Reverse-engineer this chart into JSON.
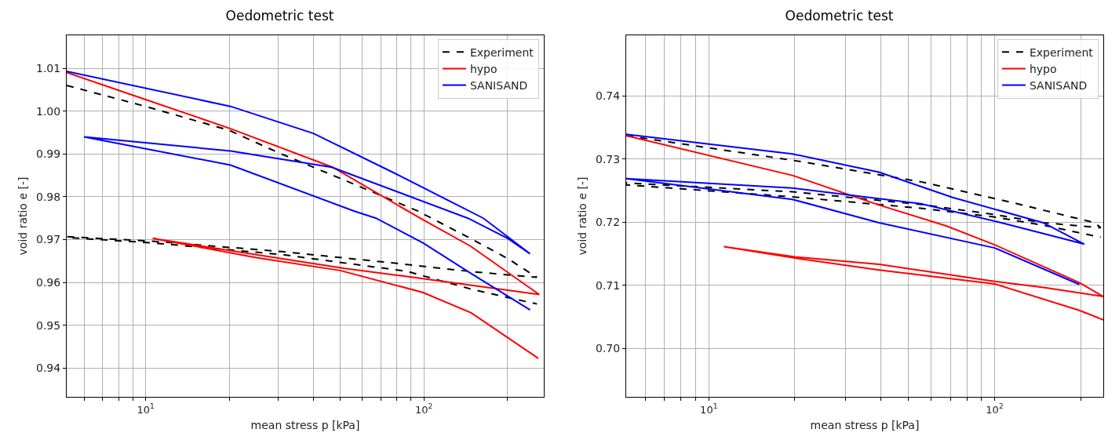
{
  "chart_data": [
    {
      "type": "line",
      "title": "Oedometric test",
      "xlabel": "mean stress p [kPa]",
      "ylabel": "void ratio e [-]",
      "log": "x",
      "grid": true,
      "legend": "top right",
      "xlim": [
        5.2,
        270
      ],
      "ylim": [
        0.9333,
        1.0177
      ],
      "xticks": [
        {
          "value": 6,
          "label": null
        },
        {
          "value": 7,
          "label": null
        },
        {
          "value": 8,
          "label": null
        },
        {
          "value": 9,
          "label": null
        },
        {
          "value": 10,
          "label": "10$^{1}$"
        },
        {
          "value": 20,
          "label": null
        },
        {
          "value": 30,
          "label": null
        },
        {
          "value": 40,
          "label": null
        },
        {
          "value": 50,
          "label": null
        },
        {
          "value": 60,
          "label": null
        },
        {
          "value": 70,
          "label": null
        },
        {
          "value": 80,
          "label": null
        },
        {
          "value": 90,
          "label": null
        },
        {
          "value": 100,
          "label": "10$^{2}$"
        },
        {
          "value": 200,
          "label": null
        }
      ],
      "yticks": [
        0.94,
        0.95,
        0.96,
        0.97,
        0.98,
        0.99,
        {
          "value": 1,
          "label": "1.00"
        },
        1.01
      ],
      "series": [
        {
          "name": "Experiment",
          "color": "#000000",
          "line_style": "dashed",
          "x": [
            5.2,
            10,
            20,
            30,
            50,
            95,
            150,
            200,
            255,
            150,
            79,
            31,
            10.8,
            5.2,
            5.2,
            10.8,
            31,
            87,
            147,
            200,
            255
          ],
          "values": [
            1.006,
            1.0011,
            0.9955,
            0.9903,
            0.9843,
            0.9767,
            0.97,
            0.9656,
            0.9612,
            0.9625,
            0.9645,
            0.9672,
            0.9696,
            0.9707,
            0.9705,
            0.9692,
            0.9665,
            0.9626,
            0.9585,
            0.9565,
            0.955
          ]
        },
        {
          "name": "hypo",
          "color": "#ff0000",
          "line_style": "solid",
          "x": [
            5.2,
            10,
            20.2,
            47,
            97,
            147,
            260,
            87,
            52,
            25,
            10.6,
            25,
            50,
            99,
            148,
            258
          ],
          "values": [
            1.009,
            1.0027,
            0.9959,
            0.9869,
            0.975,
            0.9685,
            0.9572,
            0.9614,
            0.9633,
            0.9665,
            0.9703,
            0.9658,
            0.9628,
            0.9577,
            0.9529,
            0.9423
          ]
        },
        {
          "name": "SANISAND",
          "color": "#0000ff",
          "line_style": "solid",
          "x": [
            5.2,
            20.2,
            40.1,
            76.9,
            163.7,
            241,
            200,
            144,
            46.7,
            20.2,
            6,
            20.2,
            56,
            67.3,
            99.5,
            147,
            241
          ],
          "values": [
            1.0093,
            1.0011,
            0.9948,
            0.9858,
            0.975,
            0.9667,
            0.9703,
            0.975,
            0.9869,
            0.9907,
            0.994,
            0.9874,
            0.9767,
            0.975,
            0.9692,
            0.9622,
            0.9536
          ]
        }
      ]
    },
    {
      "type": "line",
      "title": "Oedometric test",
      "xlabel": "mean stress p [kPa]",
      "ylabel": "void ratio e [-]",
      "log": "x",
      "grid": true,
      "legend": "top right",
      "xlim": [
        5.14,
        240
      ],
      "ylim": [
        0.6923,
        0.7496
      ],
      "xticks": [
        {
          "value": 6,
          "label": null
        },
        {
          "value": 7,
          "label": null
        },
        {
          "value": 8,
          "label": null
        },
        {
          "value": 9,
          "label": null
        },
        {
          "value": 10,
          "label": "10$^{1}$"
        },
        {
          "value": 20,
          "label": null
        },
        {
          "value": 30,
          "label": null
        },
        {
          "value": 40,
          "label": null
        },
        {
          "value": 50,
          "label": null
        },
        {
          "value": 60,
          "label": null
        },
        {
          "value": 70,
          "label": null
        },
        {
          "value": 80,
          "label": null
        },
        {
          "value": 90,
          "label": null
        },
        {
          "value": 100,
          "label": "10$^{2}$"
        },
        {
          "value": 200,
          "label": null
        }
      ],
      "yticks": [
        {
          "value": 0.7,
          "label": "0.70"
        },
        0.71,
        0.72,
        0.73,
        0.74
      ],
      "series": [
        {
          "name": "Experiment",
          "color": "#000000",
          "line_style": "dashed",
          "x": [
            5.14,
            19.6,
            55,
            120,
            224,
            235,
            148,
            100,
            55,
            19.6,
            5.14,
            5.14,
            19.6,
            55,
            100,
            148,
            235
          ],
          "values": [
            0.7337,
            0.7298,
            0.7264,
            0.7229,
            0.7199,
            0.7191,
            0.7199,
            0.7212,
            0.7228,
            0.7248,
            0.7262,
            0.7259,
            0.724,
            0.7222,
            0.7208,
            0.7195,
            0.7176
          ]
        },
        {
          "name": "hypo",
          "color": "#ff0000",
          "line_style": "solid",
          "x": [
            5.14,
            19.6,
            39.4,
            67.7,
            100,
            198,
            240,
            150,
            100,
            39.4,
            20,
            11.3,
            20,
            39.4,
            100,
            198,
            240
          ],
          "values": [
            0.7337,
            0.7274,
            0.7227,
            0.7194,
            0.7164,
            0.7104,
            0.7082,
            0.7096,
            0.7106,
            0.7133,
            0.7145,
            0.7161,
            0.7143,
            0.7124,
            0.7102,
            0.706,
            0.7045
          ]
        },
        {
          "name": "SANISAND",
          "color": "#0000ff",
          "line_style": "solid",
          "x": [
            5.14,
            19.6,
            39.4,
            71.3,
            147.7,
            206,
            105.5,
            55.2,
            19.6,
            5.14,
            19.6,
            39.4,
            100,
            198
          ],
          "values": [
            0.7339,
            0.7308,
            0.7279,
            0.7239,
            0.7199,
            0.7165,
            0.7199,
            0.7229,
            0.7254,
            0.7269,
            0.7236,
            0.7199,
            0.7159,
            0.7101
          ]
        }
      ]
    }
  ]
}
